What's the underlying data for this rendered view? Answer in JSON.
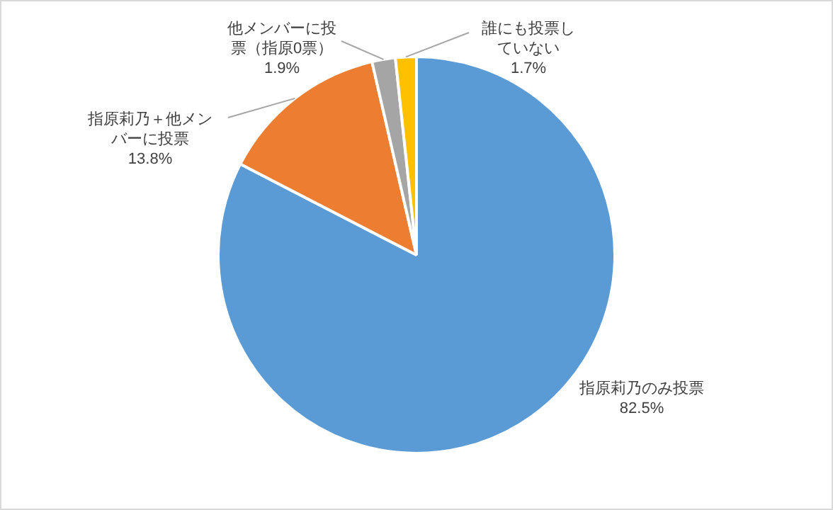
{
  "chart_data": {
    "type": "pie",
    "categories": [
      "指原莉乃のみ投票",
      "指原莉乃＋他メンバーに投票",
      "他メンバーに投票（指原0票）",
      "誰にも投票していない"
    ],
    "values": [
      82.5,
      13.8,
      1.9,
      1.7
    ],
    "colors": [
      "#5b9bd5",
      "#ed7d31",
      "#a5a5a5",
      "#ffc000"
    ],
    "value_labels": [
      "82.5%",
      "13.8%",
      "1.9%",
      "1.7%"
    ],
    "legend": false
  }
}
